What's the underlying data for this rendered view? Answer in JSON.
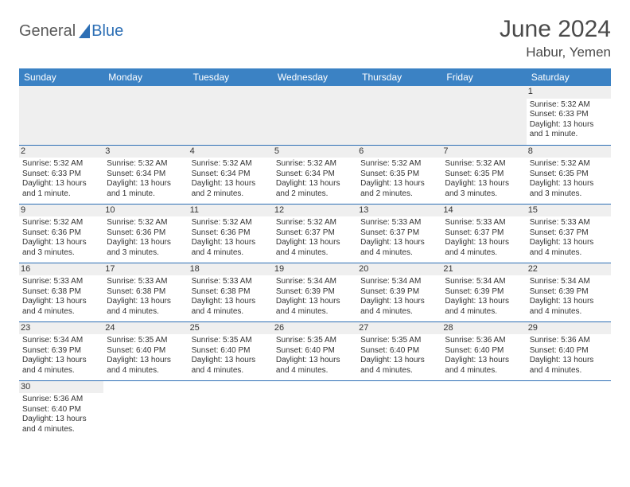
{
  "logo": {
    "part1": "General",
    "part2": "Blue"
  },
  "title": "June 2024",
  "location": "Habur, Yemen",
  "colors": {
    "header_bg": "#3b82c4",
    "header_text": "#ffffff",
    "grid_line": "#2d6fb5",
    "daynum_bg": "#efefef",
    "text": "#333333",
    "logo_gray": "#5a5a5a",
    "logo_blue": "#2d6fb5"
  },
  "day_headers": [
    "Sunday",
    "Monday",
    "Tuesday",
    "Wednesday",
    "Thursday",
    "Friday",
    "Saturday"
  ],
  "weeks": [
    [
      {
        "blank": true
      },
      {
        "blank": true
      },
      {
        "blank": true
      },
      {
        "blank": true
      },
      {
        "blank": true
      },
      {
        "blank": true
      },
      {
        "day": "1",
        "sunrise": "Sunrise: 5:32 AM",
        "sunset": "Sunset: 6:33 PM",
        "daylight1": "Daylight: 13 hours",
        "daylight2": "and 1 minute."
      }
    ],
    [
      {
        "day": "2",
        "sunrise": "Sunrise: 5:32 AM",
        "sunset": "Sunset: 6:33 PM",
        "daylight1": "Daylight: 13 hours",
        "daylight2": "and 1 minute."
      },
      {
        "day": "3",
        "sunrise": "Sunrise: 5:32 AM",
        "sunset": "Sunset: 6:34 PM",
        "daylight1": "Daylight: 13 hours",
        "daylight2": "and 1 minute."
      },
      {
        "day": "4",
        "sunrise": "Sunrise: 5:32 AM",
        "sunset": "Sunset: 6:34 PM",
        "daylight1": "Daylight: 13 hours",
        "daylight2": "and 2 minutes."
      },
      {
        "day": "5",
        "sunrise": "Sunrise: 5:32 AM",
        "sunset": "Sunset: 6:34 PM",
        "daylight1": "Daylight: 13 hours",
        "daylight2": "and 2 minutes."
      },
      {
        "day": "6",
        "sunrise": "Sunrise: 5:32 AM",
        "sunset": "Sunset: 6:35 PM",
        "daylight1": "Daylight: 13 hours",
        "daylight2": "and 2 minutes."
      },
      {
        "day": "7",
        "sunrise": "Sunrise: 5:32 AM",
        "sunset": "Sunset: 6:35 PM",
        "daylight1": "Daylight: 13 hours",
        "daylight2": "and 3 minutes."
      },
      {
        "day": "8",
        "sunrise": "Sunrise: 5:32 AM",
        "sunset": "Sunset: 6:35 PM",
        "daylight1": "Daylight: 13 hours",
        "daylight2": "and 3 minutes."
      }
    ],
    [
      {
        "day": "9",
        "sunrise": "Sunrise: 5:32 AM",
        "sunset": "Sunset: 6:36 PM",
        "daylight1": "Daylight: 13 hours",
        "daylight2": "and 3 minutes."
      },
      {
        "day": "10",
        "sunrise": "Sunrise: 5:32 AM",
        "sunset": "Sunset: 6:36 PM",
        "daylight1": "Daylight: 13 hours",
        "daylight2": "and 3 minutes."
      },
      {
        "day": "11",
        "sunrise": "Sunrise: 5:32 AM",
        "sunset": "Sunset: 6:36 PM",
        "daylight1": "Daylight: 13 hours",
        "daylight2": "and 4 minutes."
      },
      {
        "day": "12",
        "sunrise": "Sunrise: 5:32 AM",
        "sunset": "Sunset: 6:37 PM",
        "daylight1": "Daylight: 13 hours",
        "daylight2": "and 4 minutes."
      },
      {
        "day": "13",
        "sunrise": "Sunrise: 5:33 AM",
        "sunset": "Sunset: 6:37 PM",
        "daylight1": "Daylight: 13 hours",
        "daylight2": "and 4 minutes."
      },
      {
        "day": "14",
        "sunrise": "Sunrise: 5:33 AM",
        "sunset": "Sunset: 6:37 PM",
        "daylight1": "Daylight: 13 hours",
        "daylight2": "and 4 minutes."
      },
      {
        "day": "15",
        "sunrise": "Sunrise: 5:33 AM",
        "sunset": "Sunset: 6:37 PM",
        "daylight1": "Daylight: 13 hours",
        "daylight2": "and 4 minutes."
      }
    ],
    [
      {
        "day": "16",
        "sunrise": "Sunrise: 5:33 AM",
        "sunset": "Sunset: 6:38 PM",
        "daylight1": "Daylight: 13 hours",
        "daylight2": "and 4 minutes."
      },
      {
        "day": "17",
        "sunrise": "Sunrise: 5:33 AM",
        "sunset": "Sunset: 6:38 PM",
        "daylight1": "Daylight: 13 hours",
        "daylight2": "and 4 minutes."
      },
      {
        "day": "18",
        "sunrise": "Sunrise: 5:33 AM",
        "sunset": "Sunset: 6:38 PM",
        "daylight1": "Daylight: 13 hours",
        "daylight2": "and 4 minutes."
      },
      {
        "day": "19",
        "sunrise": "Sunrise: 5:34 AM",
        "sunset": "Sunset: 6:39 PM",
        "daylight1": "Daylight: 13 hours",
        "daylight2": "and 4 minutes."
      },
      {
        "day": "20",
        "sunrise": "Sunrise: 5:34 AM",
        "sunset": "Sunset: 6:39 PM",
        "daylight1": "Daylight: 13 hours",
        "daylight2": "and 4 minutes."
      },
      {
        "day": "21",
        "sunrise": "Sunrise: 5:34 AM",
        "sunset": "Sunset: 6:39 PM",
        "daylight1": "Daylight: 13 hours",
        "daylight2": "and 4 minutes."
      },
      {
        "day": "22",
        "sunrise": "Sunrise: 5:34 AM",
        "sunset": "Sunset: 6:39 PM",
        "daylight1": "Daylight: 13 hours",
        "daylight2": "and 4 minutes."
      }
    ],
    [
      {
        "day": "23",
        "sunrise": "Sunrise: 5:34 AM",
        "sunset": "Sunset: 6:39 PM",
        "daylight1": "Daylight: 13 hours",
        "daylight2": "and 4 minutes."
      },
      {
        "day": "24",
        "sunrise": "Sunrise: 5:35 AM",
        "sunset": "Sunset: 6:40 PM",
        "daylight1": "Daylight: 13 hours",
        "daylight2": "and 4 minutes."
      },
      {
        "day": "25",
        "sunrise": "Sunrise: 5:35 AM",
        "sunset": "Sunset: 6:40 PM",
        "daylight1": "Daylight: 13 hours",
        "daylight2": "and 4 minutes."
      },
      {
        "day": "26",
        "sunrise": "Sunrise: 5:35 AM",
        "sunset": "Sunset: 6:40 PM",
        "daylight1": "Daylight: 13 hours",
        "daylight2": "and 4 minutes."
      },
      {
        "day": "27",
        "sunrise": "Sunrise: 5:35 AM",
        "sunset": "Sunset: 6:40 PM",
        "daylight1": "Daylight: 13 hours",
        "daylight2": "and 4 minutes."
      },
      {
        "day": "28",
        "sunrise": "Sunrise: 5:36 AM",
        "sunset": "Sunset: 6:40 PM",
        "daylight1": "Daylight: 13 hours",
        "daylight2": "and 4 minutes."
      },
      {
        "day": "29",
        "sunrise": "Sunrise: 5:36 AM",
        "sunset": "Sunset: 6:40 PM",
        "daylight1": "Daylight: 13 hours",
        "daylight2": "and 4 minutes."
      }
    ],
    [
      {
        "day": "30",
        "sunrise": "Sunrise: 5:36 AM",
        "sunset": "Sunset: 6:40 PM",
        "daylight1": "Daylight: 13 hours",
        "daylight2": "and 4 minutes."
      },
      {
        "blank": true
      },
      {
        "blank": true
      },
      {
        "blank": true
      },
      {
        "blank": true
      },
      {
        "blank": true
      },
      {
        "blank": true
      }
    ]
  ]
}
